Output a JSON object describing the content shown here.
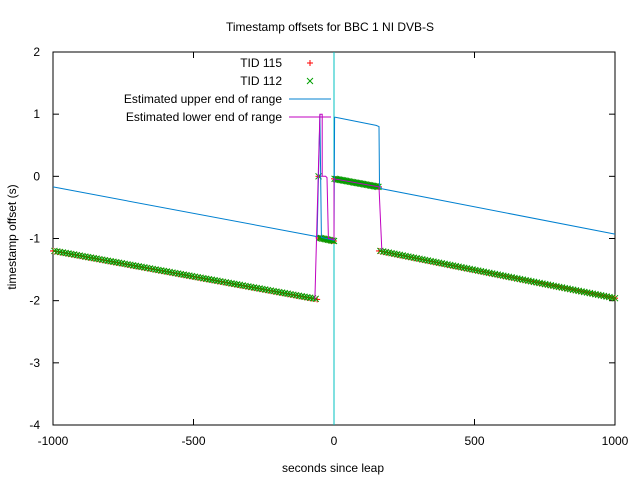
{
  "chart_data": {
    "type": "line",
    "title": "Timestamp offsets for BBC 1 NI DVB-S",
    "xlabel": "seconds since leap",
    "ylabel": "timestamp offset (s)",
    "xlim": [
      -1000,
      1000
    ],
    "ylim": [
      -4,
      2
    ],
    "x_ticks": [
      -1000,
      -500,
      0,
      500,
      1000
    ],
    "y_ticks": [
      -4,
      -3,
      -2,
      -1,
      0,
      1,
      2
    ],
    "legend_position": "top-center",
    "reference_line": {
      "x": 0,
      "color": "#00c0c0"
    },
    "series": [
      {
        "name": "TID 115",
        "style": "points",
        "marker": "plus",
        "color": "#ff0000",
        "segments": [
          {
            "x_start": -1000,
            "x_end": -60,
            "y_start": -1.2,
            "y_end": -1.98,
            "step": 10
          },
          {
            "x_start": -55,
            "x_end": 0,
            "y_start": -0.99,
            "y_end": -1.04,
            "step": 5
          },
          {
            "x_start": 0,
            "x_end": 160,
            "y_start": -0.04,
            "y_end": -0.17,
            "step": 5
          },
          {
            "x_start": 160,
            "x_end": 1000,
            "y_start": -1.2,
            "y_end": -1.96,
            "step": 10
          }
        ],
        "extra_points": [
          {
            "x": -55,
            "y": 0.0
          }
        ]
      },
      {
        "name": "TID 112",
        "style": "points",
        "marker": "cross",
        "color": "#00a000",
        "segments": [
          {
            "x_start": -995,
            "x_end": -65,
            "y_start": -1.2,
            "y_end": -1.97,
            "step": 10
          },
          {
            "x_start": -52,
            "x_end": 0,
            "y_start": -0.99,
            "y_end": -1.04,
            "step": 5
          },
          {
            "x_start": 2,
            "x_end": 158,
            "y_start": -0.04,
            "y_end": -0.17,
            "step": 5
          },
          {
            "x_start": 165,
            "x_end": 1000,
            "y_start": -1.2,
            "y_end": -1.96,
            "step": 10
          }
        ],
        "extra_points": [
          {
            "x": -55,
            "y": 0.0
          }
        ]
      },
      {
        "name": "Estimated upper end of range",
        "style": "line",
        "color": "#0080d0",
        "x": [
          -1000,
          -60,
          -55,
          -50,
          -45,
          0,
          2,
          5,
          150,
          160,
          162,
          170,
          1000
        ],
        "y": [
          -0.17,
          -0.97,
          0.0,
          1.0,
          -0.98,
          -1.03,
          0.95,
          0.95,
          0.82,
          0.8,
          -0.15,
          -0.2,
          -0.93
        ]
      },
      {
        "name": "Estimated lower end of range",
        "style": "line",
        "color": "#c000c0",
        "x": [
          -68,
          -62,
          -50,
          -42,
          -42,
          -30,
          -25,
          -20,
          -15,
          0,
          0,
          160,
          170
        ],
        "y": [
          -1.98,
          -0.95,
          1.0,
          1.0,
          0.0,
          0.0,
          -0.02,
          -1.0,
          -1.0,
          -1.02,
          -0.04,
          -0.17,
          -1.18
        ]
      }
    ]
  }
}
